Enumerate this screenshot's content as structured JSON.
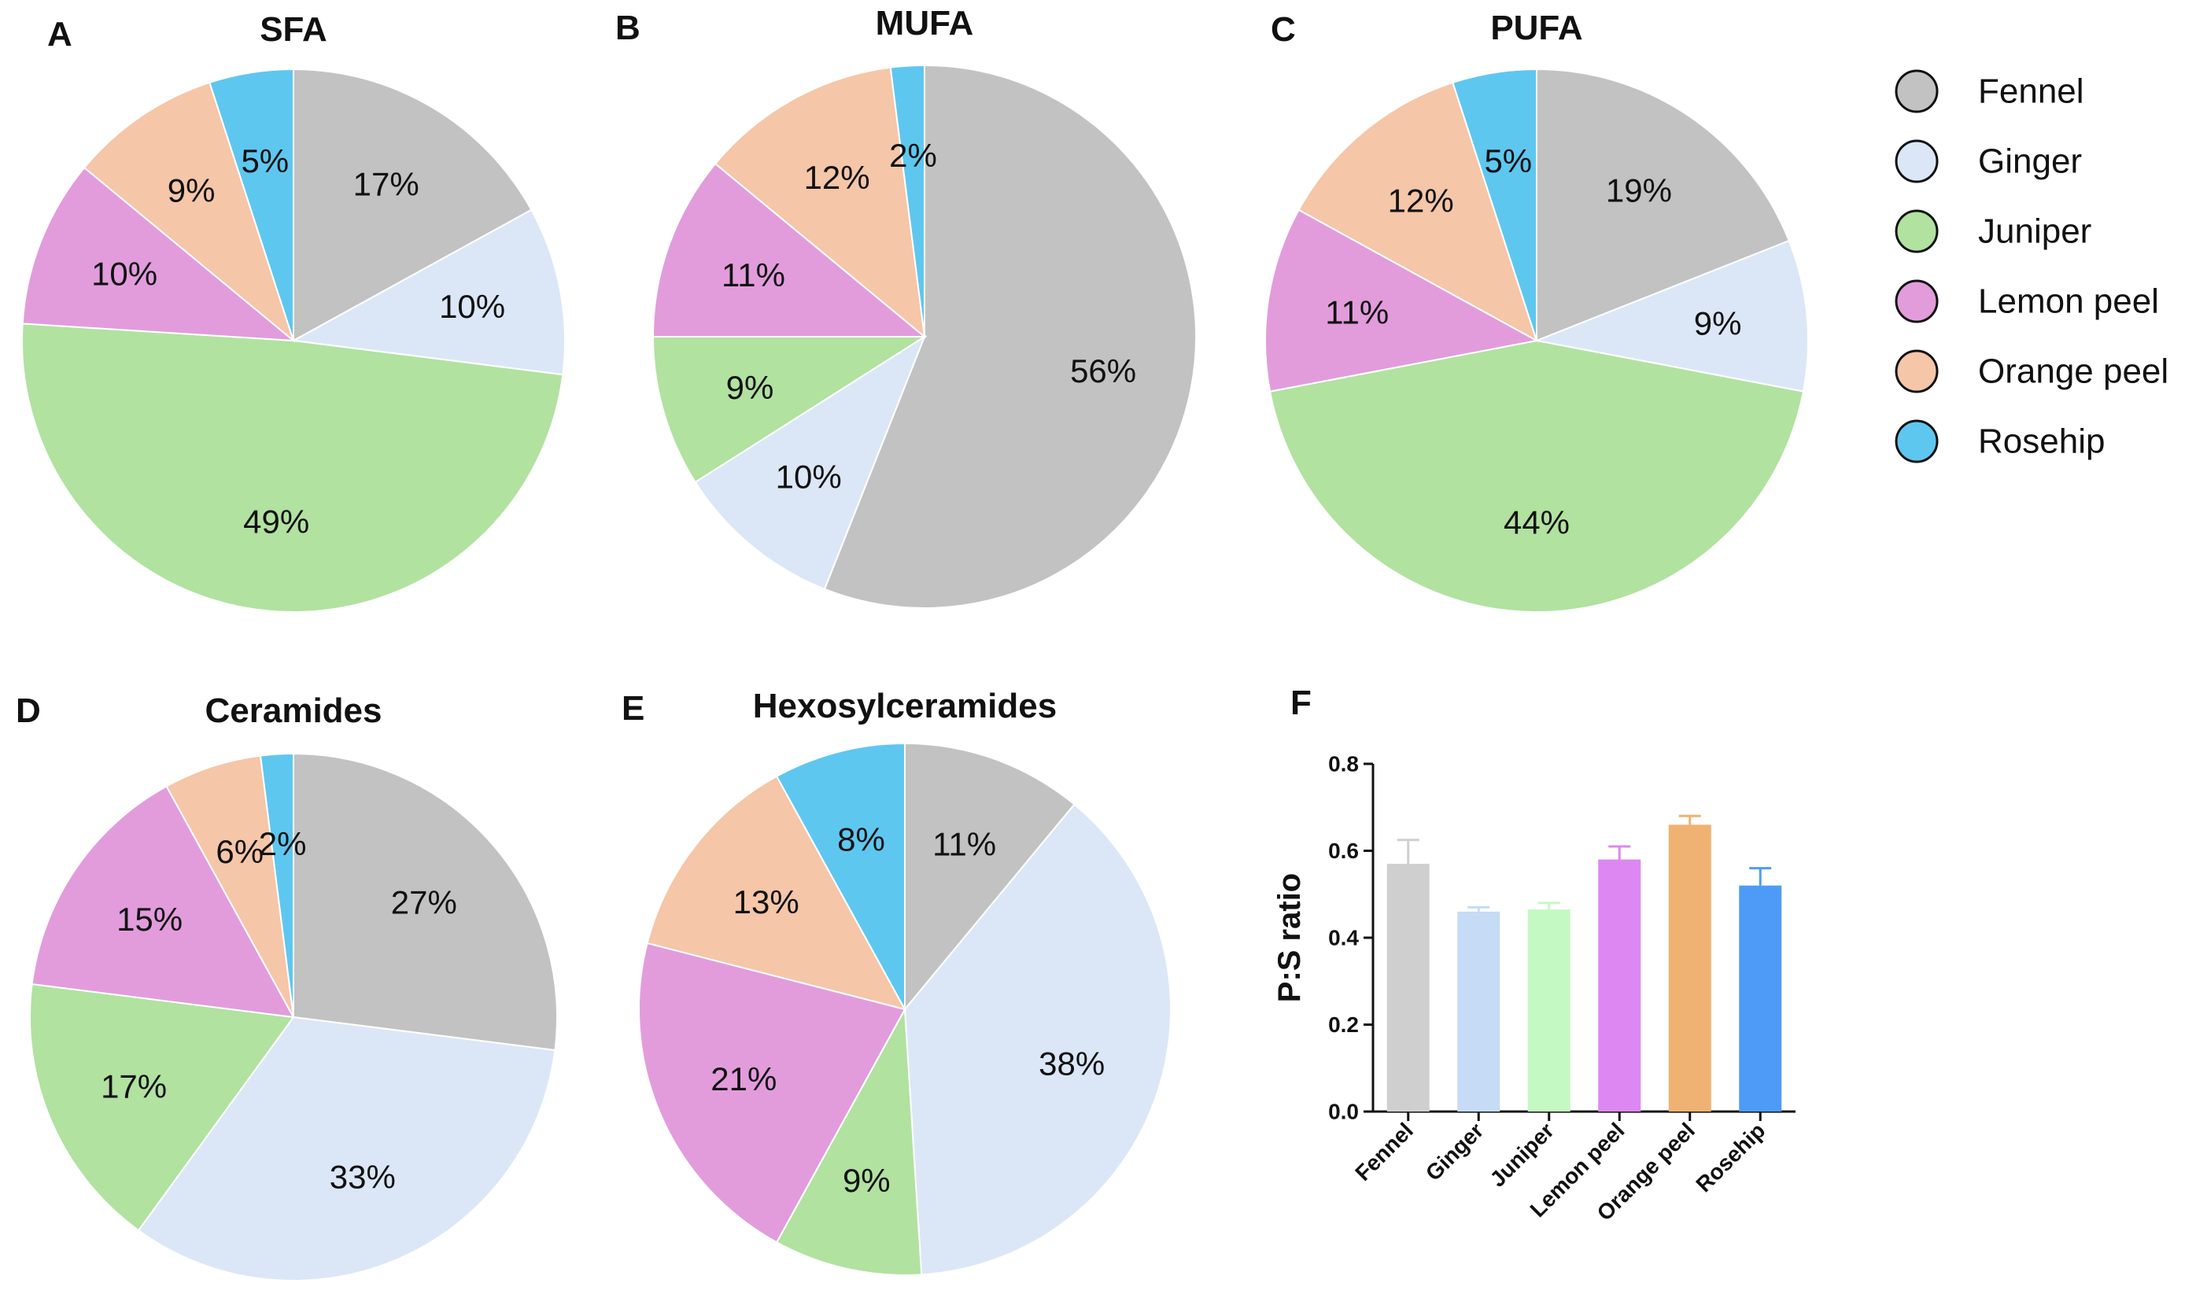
{
  "figure_letters": [
    "A",
    "B",
    "C",
    "D",
    "E",
    "F"
  ],
  "legend_entries": [
    "Fennel",
    "Ginger",
    "Juniper",
    "Lemon peel",
    "Orange peel",
    "Rosehip"
  ],
  "colors": {
    "pie": [
      "#c2c2c2",
      "#dbe7f6",
      "#b1e2a0",
      "#e29cdc",
      "#f5c6a8",
      "#5ec7f0"
    ],
    "bar": [
      "#cfcfcf",
      "#c6dbf6",
      "#c4f9c4",
      "#dd88f2",
      "#efb272",
      "#4e9bf7"
    ],
    "stroke": "#ffffff"
  },
  "chart_data": [
    {
      "type": "pie",
      "panel": "A",
      "title": "SFA",
      "labels": [
        "Fennel",
        "Ginger",
        "Juniper",
        "Lemon peel",
        "Orange peel",
        "Rosehip"
      ],
      "values": [
        17,
        10,
        49,
        10,
        9,
        5
      ],
      "value_labels": [
        "17%",
        "10%",
        "49%",
        "10%",
        "9%",
        "5%"
      ],
      "start": "12 o'clock",
      "direction": "clockwise"
    },
    {
      "type": "pie",
      "panel": "B",
      "title": "MUFA",
      "labels": [
        "Fennel",
        "Ginger",
        "Juniper",
        "Lemon peel",
        "Orange peel",
        "Rosehip"
      ],
      "values": [
        56,
        10,
        9,
        11,
        12,
        2
      ],
      "value_labels": [
        "56%",
        "10%",
        "9%",
        "11%",
        "12%",
        "2%"
      ],
      "start": "12 o'clock",
      "direction": "clockwise"
    },
    {
      "type": "pie",
      "panel": "C",
      "title": "PUFA",
      "labels": [
        "Fennel",
        "Ginger",
        "Juniper",
        "Lemon peel",
        "Orange peel",
        "Rosehip"
      ],
      "values": [
        19,
        9,
        44,
        11,
        12,
        5
      ],
      "value_labels": [
        "19%",
        "9%",
        "44%",
        "11%",
        "12%",
        "5%"
      ],
      "start": "12 o'clock",
      "direction": "clockwise"
    },
    {
      "type": "pie",
      "panel": "D",
      "title": "Ceramides",
      "labels": [
        "Fennel",
        "Ginger",
        "Juniper",
        "Lemon peel",
        "Orange peel",
        "Rosehip"
      ],
      "values": [
        27,
        33,
        17,
        15,
        6,
        2
      ],
      "value_labels": [
        "27%",
        "33%",
        "17%",
        "15%",
        "6%",
        "2%"
      ],
      "start": "12 o'clock",
      "direction": "clockwise"
    },
    {
      "type": "pie",
      "panel": "E",
      "title": "Hexosylceramides",
      "labels": [
        "Fennel",
        "Ginger",
        "Juniper",
        "Lemon peel",
        "Orange peel",
        "Rosehip"
      ],
      "values": [
        11,
        38,
        9,
        21,
        13,
        8
      ],
      "value_labels": [
        "11%",
        "38%",
        "9%",
        "21%",
        "13%",
        "8%"
      ],
      "start": "12 o'clock",
      "direction": "clockwise"
    },
    {
      "type": "bar",
      "panel": "F",
      "title": "",
      "categories": [
        "Fennel",
        "Ginger",
        "Juniper",
        "Lemon peel",
        "Orange peel",
        "Rosehip"
      ],
      "values": [
        0.57,
        0.46,
        0.465,
        0.58,
        0.66,
        0.52
      ],
      "errors": [
        0.055,
        0.01,
        0.015,
        0.03,
        0.02,
        0.04
      ],
      "ylabel": "P:S ratio",
      "xlabel": "",
      "ylim": [
        0,
        0.8
      ],
      "yticks": [
        0.0,
        0.2,
        0.4,
        0.6,
        0.8
      ],
      "ytick_labels": [
        "0.0",
        "0.2",
        "0.4",
        "0.6",
        "0.8"
      ],
      "error_bars": "upper"
    }
  ]
}
